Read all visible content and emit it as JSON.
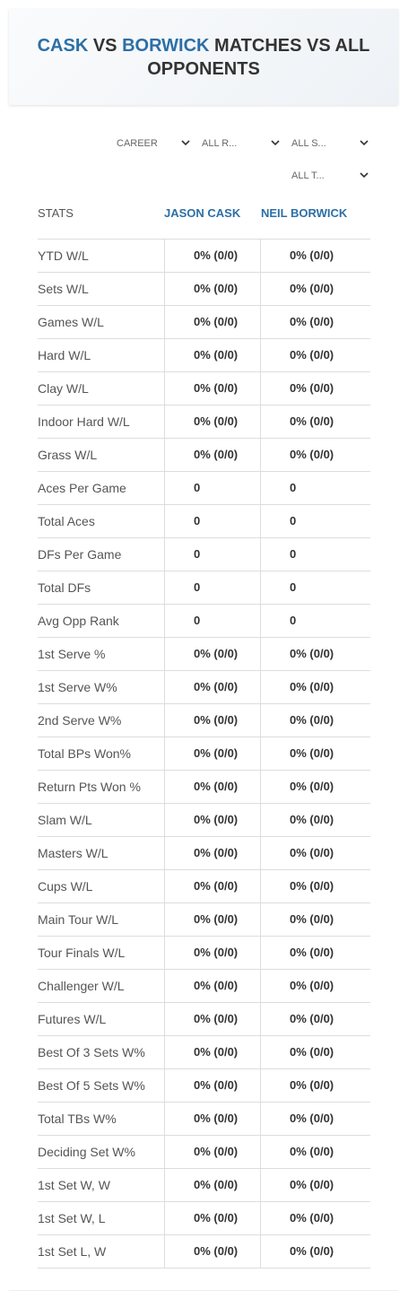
{
  "header": {
    "title": [
      "CASK",
      " VS ",
      "BORWICK",
      " MATCHES VS ALL OPPONENTS"
    ]
  },
  "filters": [
    "CAREER",
    "ALL R...",
    "ALL S...",
    "ALL T..."
  ],
  "table": {
    "columns": [
      "STATS",
      "JASON CASK",
      "NEIL BORWICK"
    ],
    "rows": [
      [
        "YTD W/L",
        "0% (0/0)",
        "0% (0/0)"
      ],
      [
        "Sets W/L",
        "0% (0/0)",
        "0% (0/0)"
      ],
      [
        "Games W/L",
        "0% (0/0)",
        "0% (0/0)"
      ],
      [
        "Hard W/L",
        "0% (0/0)",
        "0% (0/0)"
      ],
      [
        "Clay W/L",
        "0% (0/0)",
        "0% (0/0)"
      ],
      [
        "Indoor Hard W/L",
        "0% (0/0)",
        "0% (0/0)"
      ],
      [
        "Grass W/L",
        "0% (0/0)",
        "0% (0/0)"
      ],
      [
        "Aces Per Game",
        "0",
        "0"
      ],
      [
        "Total Aces",
        "0",
        "0"
      ],
      [
        "DFs Per Game",
        "0",
        "0"
      ],
      [
        "Total DFs",
        "0",
        "0"
      ],
      [
        "Avg Opp Rank",
        "0",
        "0"
      ],
      [
        "1st Serve %",
        "0% (0/0)",
        "0% (0/0)"
      ],
      [
        "1st Serve W%",
        "0% (0/0)",
        "0% (0/0)"
      ],
      [
        "2nd Serve W%",
        "0% (0/0)",
        "0% (0/0)"
      ],
      [
        "Total BPs Won%",
        "0% (0/0)",
        "0% (0/0)"
      ],
      [
        "Return Pts Won %",
        "0% (0/0)",
        "0% (0/0)"
      ],
      [
        "Slam W/L",
        "0% (0/0)",
        "0% (0/0)"
      ],
      [
        "Masters W/L",
        "0% (0/0)",
        "0% (0/0)"
      ],
      [
        "Cups W/L",
        "0% (0/0)",
        "0% (0/0)"
      ],
      [
        "Main Tour W/L",
        "0% (0/0)",
        "0% (0/0)"
      ],
      [
        "Tour Finals W/L",
        "0% (0/0)",
        "0% (0/0)"
      ],
      [
        "Challenger W/L",
        "0% (0/0)",
        "0% (0/0)"
      ],
      [
        "Futures W/L",
        "0% (0/0)",
        "0% (0/0)"
      ],
      [
        "Best Of 3 Sets W%",
        "0% (0/0)",
        "0% (0/0)"
      ],
      [
        "Best Of 5 Sets W%",
        "0% (0/0)",
        "0% (0/0)"
      ],
      [
        "Total TBs W%",
        "0% (0/0)",
        "0% (0/0)"
      ],
      [
        "Deciding Set W%",
        "0% (0/0)",
        "0% (0/0)"
      ],
      [
        "1st Set W, W",
        "0% (0/0)",
        "0% (0/0)"
      ],
      [
        "1st Set W, L",
        "0% (0/0)",
        "0% (0/0)"
      ],
      [
        "1st Set L, W",
        "0% (0/0)",
        "0% (0/0)"
      ]
    ]
  }
}
